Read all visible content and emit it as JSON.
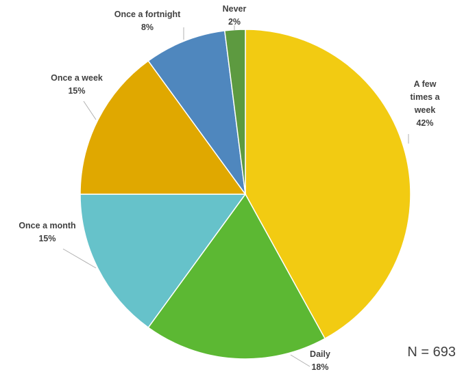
{
  "chart_data": {
    "type": "pie",
    "title": "",
    "slices": [
      {
        "label": [
          "A few",
          "times a",
          "week"
        ],
        "value": 42,
        "value_label": "42%",
        "color": "#f2cb12"
      },
      {
        "label": [
          "Daily"
        ],
        "value": 18,
        "value_label": "18%",
        "color": "#5cb833"
      },
      {
        "label": [
          "Once a month"
        ],
        "value": 15,
        "value_label": "15%",
        "color": "#66c2ca"
      },
      {
        "label": [
          "Once a week"
        ],
        "value": 15,
        "value_label": "15%",
        "color": "#e0a800"
      },
      {
        "label": [
          "Once a fortnight"
        ],
        "value": 8,
        "value_label": "8%",
        "color": "#4f87be"
      },
      {
        "label": [
          "Never"
        ],
        "value": 2,
        "value_label": "2%",
        "color": "#5d9a40"
      }
    ],
    "start": "12 o'clock",
    "direction": "clockwise",
    "legend": "none",
    "data_labels": "outside with leader lines"
  },
  "note": "N = 693"
}
